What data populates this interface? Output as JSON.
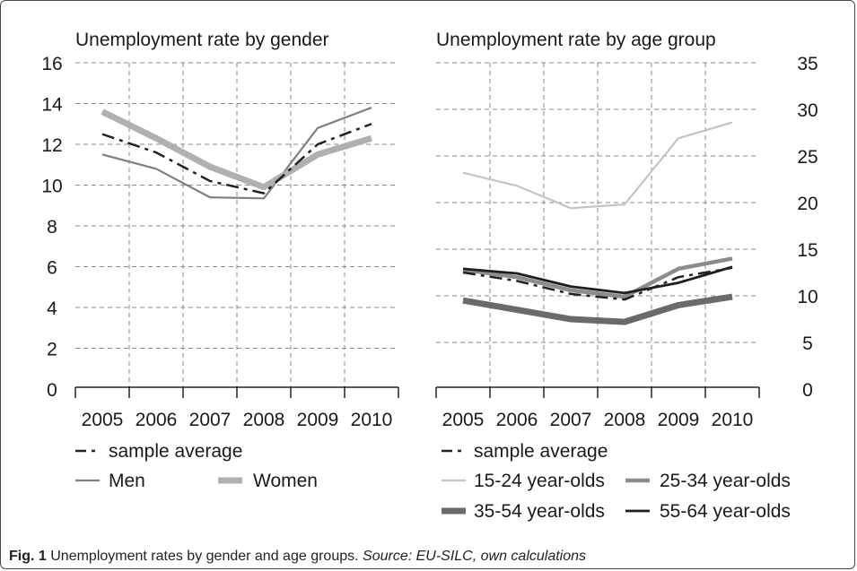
{
  "caption": {
    "label": "Fig. 1",
    "text": "Unemployment rates by gender and age groups.",
    "source": "Source: EU-SILC, own calculations"
  },
  "chart_data": [
    {
      "type": "line",
      "title": "Unemployment rate by gender",
      "x": [
        "2005",
        "2006",
        "2007",
        "2008",
        "2009",
        "2010"
      ],
      "ylim": [
        0,
        16
      ],
      "yticks": [
        0,
        2,
        4,
        6,
        8,
        10,
        12,
        14,
        16
      ],
      "grid": true,
      "legend_position": "bottom",
      "series": [
        {
          "name": "sample average",
          "values": [
            12.5,
            11.6,
            10.2,
            9.6,
            12.0,
            13.0
          ],
          "color": "#222222",
          "style": "dashed"
        },
        {
          "name": "Men",
          "values": [
            11.5,
            10.8,
            9.4,
            9.35,
            12.8,
            13.8
          ],
          "color": "#808080",
          "style": "thin"
        },
        {
          "name": "Women",
          "values": [
            13.6,
            12.3,
            10.9,
            9.9,
            11.5,
            12.3
          ],
          "color": "#b0b0b0",
          "style": "thick"
        }
      ],
      "legend_rows": [
        [
          "sample average"
        ],
        [
          "Men",
          "Women"
        ]
      ]
    },
    {
      "type": "line",
      "title": "Unemployment rate by age group",
      "x": [
        "2005",
        "2006",
        "2007",
        "2008",
        "2009",
        "2010"
      ],
      "ylim": [
        0,
        35
      ],
      "yticks": [
        0,
        5,
        10,
        15,
        20,
        25,
        30,
        35
      ],
      "y_axis_side": "right",
      "grid": true,
      "legend_position": "bottom",
      "series": [
        {
          "name": "sample average",
          "values": [
            12.5,
            11.6,
            10.2,
            9.6,
            12.0,
            13.0
          ],
          "color": "#222222",
          "style": "dashed"
        },
        {
          "name": "15-24 year-olds",
          "values": [
            23.2,
            21.8,
            19.4,
            19.8,
            26.9,
            28.6
          ],
          "color": "#c4c4c4",
          "style": "thin"
        },
        {
          "name": "25-34 year-olds",
          "values": [
            12.8,
            12.0,
            10.6,
            9.9,
            12.9,
            14.0
          ],
          "color": "#8c8c8c",
          "style": "medium"
        },
        {
          "name": "35-54 year-olds",
          "values": [
            9.5,
            8.5,
            7.5,
            7.2,
            9.0,
            9.9
          ],
          "color": "#6a6a6a",
          "style": "thick"
        },
        {
          "name": "55-64 year-olds",
          "values": [
            12.9,
            12.4,
            11.0,
            10.3,
            11.4,
            13.1
          ],
          "color": "#1e1e1e",
          "style": "solid"
        }
      ],
      "legend_rows": [
        [
          "sample average"
        ],
        [
          "15-24 year-olds",
          "25-34 year-olds"
        ],
        [
          "35-54 year-olds",
          "55-64 year-olds"
        ]
      ]
    }
  ]
}
